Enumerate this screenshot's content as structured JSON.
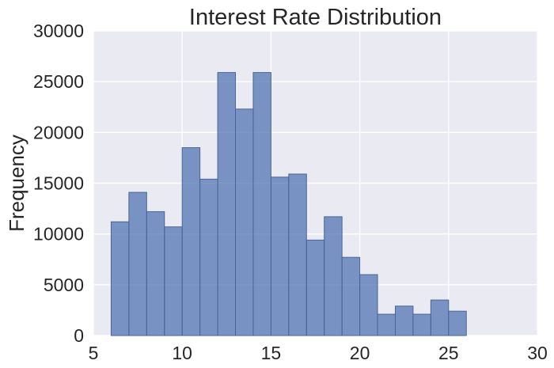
{
  "chart_data": {
    "type": "bar",
    "title": "Interest Rate Distribution",
    "xlabel": "",
    "ylabel": "Frequency",
    "xlim": [
      5,
      30
    ],
    "ylim": [
      0,
      30000
    ],
    "x_ticks": [
      5,
      10,
      15,
      20,
      25,
      30
    ],
    "y_ticks": [
      0,
      5000,
      10000,
      15000,
      20000,
      25000,
      30000
    ],
    "grid": true,
    "bin_edges": [
      6,
      7,
      8,
      9,
      10,
      11,
      12,
      13,
      14,
      15,
      16,
      17,
      18,
      19,
      20,
      21,
      22,
      23,
      24,
      25,
      26
    ],
    "values": [
      11200,
      14100,
      12200,
      10700,
      18500,
      15400,
      25900,
      22300,
      25900,
      15600,
      15900,
      9400,
      11700,
      7700,
      6000,
      2100,
      2900,
      2100,
      3500,
      2400
    ],
    "colors": {
      "bar_fill": "#4c72b0",
      "plot_background": "#eaeaf2",
      "grid": "#ffffff"
    }
  }
}
